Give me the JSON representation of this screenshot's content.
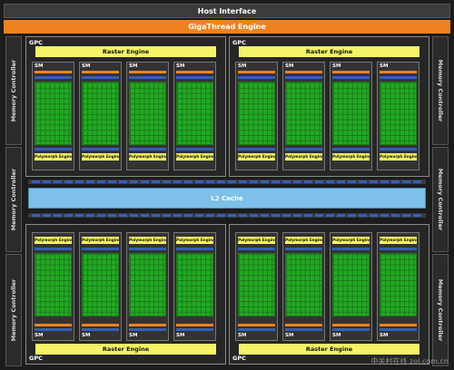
{
  "diagram": {
    "host_interface": "Host Interface",
    "gigathread_engine": "GigaThread Engine",
    "memory_controller": "Memory Controller",
    "l2_cache": "L2 Cache",
    "gpc_label": "GPC",
    "raster_engine": "Raster Engine",
    "sm_label": "SM",
    "polymorph_engine": "Polymorph Engine",
    "watermark": "中关村在线 zol.com.cn"
  },
  "colors": {
    "host_bg": "#3b3b3b",
    "giga_bg": "#f0821e",
    "raster_bg": "#f4f466",
    "polymorph_bg": "#f4f466",
    "core_green": "#22aa22",
    "l2_bg": "#7ec0e8",
    "bar_blue": "#3360b8",
    "bar_orange": "#f0821e"
  }
}
